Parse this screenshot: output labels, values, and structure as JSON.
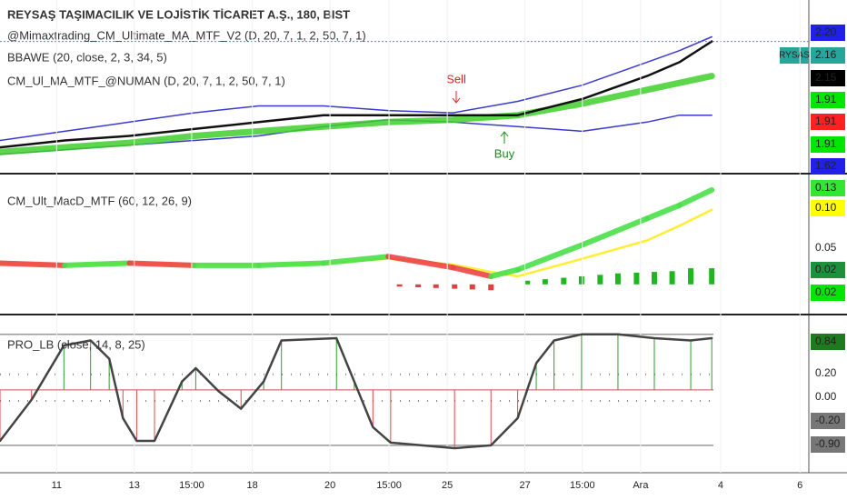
{
  "chart_data": [
    {
      "type": "line",
      "title": "REYSAŞ TAŞIMACILIK VE LOJİSTİK TİCARET A.Ş., 180, BIST",
      "legend": [
        "@Mimaxtrading_CM_Ultimate_MA_MTF_V2 (D, 20, 7, 1, 2, 50, 7, 1)",
        "BBAWE (20, close, 2, 3, 34, 5)",
        "CM_Ul_MA_MTF_@NUMAN (D, 20, 7, 1, 2, 50, 7, 1)"
      ],
      "annotations": [
        "Sell",
        "Buy"
      ],
      "xlim": [
        0,
        100
      ],
      "ylim": [
        1.59,
        2.34
      ],
      "series": [
        {
          "name": "Upper band",
          "type": "line",
          "color": "#3a3ad0",
          "width": 1.5,
          "x": [
            0,
            8,
            16,
            24,
            32,
            40,
            48,
            56,
            64,
            72,
            80,
            84,
            88
          ],
          "values": [
            1.73,
            1.77,
            1.81,
            1.85,
            1.88,
            1.88,
            1.86,
            1.85,
            1.9,
            1.97,
            2.07,
            2.12,
            2.18
          ]
        },
        {
          "name": "Lower band",
          "type": "line",
          "color": "#3a3ad0",
          "width": 1.5,
          "x": [
            0,
            8,
            16,
            24,
            32,
            40,
            48,
            56,
            64,
            72,
            80,
            84,
            88
          ],
          "values": [
            1.67,
            1.69,
            1.71,
            1.73,
            1.75,
            1.79,
            1.82,
            1.81,
            1.79,
            1.77,
            1.81,
            1.84,
            1.84
          ]
        },
        {
          "name": "MA",
          "type": "line",
          "color": "#3fcf2a",
          "width": 7,
          "x": [
            0,
            8,
            16,
            24,
            32,
            40,
            48,
            56,
            64,
            72,
            80,
            84,
            88
          ],
          "values": [
            1.68,
            1.7,
            1.72,
            1.75,
            1.77,
            1.79,
            1.81,
            1.82,
            1.84,
            1.89,
            1.95,
            1.98,
            2.01
          ]
        },
        {
          "name": "Price",
          "type": "line",
          "color": "#111111",
          "width": 2.5,
          "x": [
            0,
            8,
            16,
            24,
            32,
            40,
            48,
            56,
            64,
            72,
            80,
            84,
            88
          ],
          "values": [
            1.7,
            1.73,
            1.75,
            1.78,
            1.81,
            1.84,
            1.84,
            1.84,
            1.84,
            1.91,
            2.01,
            2.07,
            2.16
          ]
        }
      ],
      "axis_labels": [
        {
          "value": 2.2,
          "label": "2.20",
          "color": "#2020e8",
          "text_color": "#ffffff"
        },
        {
          "value": 2.16,
          "label": "2.16",
          "color": "#26a69a",
          "text_color": "#ffffff",
          "name": "RYSAS"
        },
        {
          "value": 2.15,
          "label": "2.15",
          "color": "#000000",
          "text_color": "#ffffff"
        },
        {
          "value": 1.91,
          "label": "1.91",
          "color": "#00e600",
          "text_color": "#000000"
        },
        {
          "value": 1.91,
          "label": "1.91",
          "color": "#ff2020",
          "text_color": "#ffffff"
        },
        {
          "value": 1.91,
          "label": "1.91",
          "color": "#00e600",
          "text_color": "#000000"
        },
        {
          "value": 1.62,
          "label": "1.62",
          "color": "#2020e8",
          "text_color": "#ffffff"
        }
      ]
    },
    {
      "type": "line",
      "legend": [
        "CM_Ult_MacD_MTF (60, 12, 26, 9)"
      ],
      "xlim": [
        0,
        100
      ],
      "ylim": [
        -0.04,
        0.15
      ],
      "series": [
        {
          "name": "Histogram",
          "type": "bar",
          "color": "#22b522",
          "down_color": "#e04040",
          "x": [
            49.4,
            51.7,
            53.9,
            56.2,
            58.4,
            60.7,
            65.2,
            67.4,
            69.7,
            71.9,
            74.2,
            76.4,
            78.7,
            80.9,
            83.1,
            85.4,
            88
          ],
          "values": [
            -0.003,
            -0.004,
            -0.005,
            -0.006,
            -0.007,
            -0.008,
            0.005,
            0.007,
            0.009,
            0.011,
            0.013,
            0.015,
            0.016,
            0.017,
            0.018,
            0.022,
            0.022
          ]
        },
        {
          "name": "Signal",
          "type": "line",
          "color": "#ffee33",
          "width": 2.5,
          "x": [
            0,
            8,
            16,
            24,
            32,
            40,
            48,
            56,
            60.7,
            64,
            72,
            80,
            84,
            88
          ],
          "values": [
            0.029,
            0.027,
            0.029,
            0.027,
            0.027,
            0.029,
            0.035,
            0.027,
            0.017,
            0.011,
            0.035,
            0.06,
            0.08,
            0.102
          ]
        },
        {
          "name": "MACD",
          "type": "line",
          "color": "#4be04b",
          "down_color": "#ee4444",
          "width": 6,
          "x": [
            0,
            8,
            16,
            24,
            32,
            40,
            48,
            56,
            60.7,
            64,
            72,
            80,
            84,
            88
          ],
          "values": [
            0.029,
            0.026,
            0.029,
            0.026,
            0.026,
            0.029,
            0.038,
            0.023,
            0.011,
            0.02,
            0.054,
            0.09,
            0.108,
            0.129
          ]
        }
      ],
      "axis_labels": [
        {
          "value": 0.13,
          "label": "0.13",
          "color": "#33e633",
          "text_color": "#000000"
        },
        {
          "value": 0.1,
          "label": "0.10",
          "color": "#ffff00",
          "text_color": "#000000"
        },
        {
          "value": 0.05,
          "label": "0.05",
          "color": "#ffffff",
          "text_color": "#333333"
        },
        {
          "value": 0.02,
          "label": "0.02",
          "color": "#1e8f3a",
          "text_color": "#ffffff"
        },
        {
          "value": 0.02,
          "label": "0.02",
          "color": "#00e600",
          "text_color": "#000000"
        }
      ]
    },
    {
      "type": "line",
      "legend": [
        "PRO_LB (close, 14, 8, 25)"
      ],
      "xlim": [
        0,
        100
      ],
      "ylim": [
        -1.46,
        1.34
      ],
      "hlines": [
        1,
        -1
      ],
      "dotted": [
        0.28,
        -0.2
      ],
      "series": [
        {
          "name": "Oscillator",
          "type": "line",
          "color": "#444444",
          "width": 2.5,
          "stems": true,
          "up_color": "#2e9e2e",
          "down_color": "#e04848",
          "x": [
            0,
            3.9,
            7.9,
            11.2,
            13.5,
            15.2,
            16.9,
            19.1,
            22.5,
            24.2,
            27,
            29.8,
            32.6,
            34.8,
            41.6,
            43.8,
            46.1,
            48.3,
            56.2,
            60.7,
            64,
            66.3,
            68.5,
            71.9,
            76.4,
            80.9,
            85.4,
            88
          ],
          "values": [
            -0.92,
            -0.18,
            0.8,
            0.89,
            0.56,
            -0.51,
            -0.92,
            -0.92,
            0.15,
            0.39,
            -0.02,
            -0.34,
            0.15,
            0.89,
            0.93,
            0.15,
            -0.67,
            -0.95,
            -1.05,
            -1.0,
            -0.51,
            0.48,
            0.89,
            1.0,
            1.0,
            0.93,
            0.89,
            0.93
          ]
        }
      ],
      "axis_labels": [
        {
          "value": 0.84,
          "label": "0.84",
          "color": "#1e7a1e",
          "text_color": "#ffffff"
        },
        {
          "value": 0.2,
          "label": "0.20",
          "color": "#ffffff",
          "text_color": "#333333"
        },
        {
          "value": 0,
          "label": "0.00",
          "color": "#ffffff",
          "text_color": "#333333"
        },
        {
          "value": -0.2,
          "label": "-0.20",
          "color": "#777777",
          "text_color": "#ffffff"
        },
        {
          "value": -0.9,
          "label": "-0.90",
          "color": "#777777",
          "text_color": "#ffffff"
        }
      ],
      "xticks": [
        {
          "value": 7,
          "label": "11"
        },
        {
          "value": 16.6,
          "label": "13"
        },
        {
          "value": 23.7,
          "label": "15:00"
        },
        {
          "value": 31.2,
          "label": "18"
        },
        {
          "value": 40.8,
          "label": "20"
        },
        {
          "value": 48.1,
          "label": "15:00"
        },
        {
          "value": 55.3,
          "label": "25"
        },
        {
          "value": 64.9,
          "label": "27"
        },
        {
          "value": 72,
          "label": "15:00"
        },
        {
          "value": 79.2,
          "label": "Ara"
        },
        {
          "value": 89.1,
          "label": "4"
        },
        {
          "value": 98.9,
          "label": "6"
        }
      ]
    }
  ]
}
